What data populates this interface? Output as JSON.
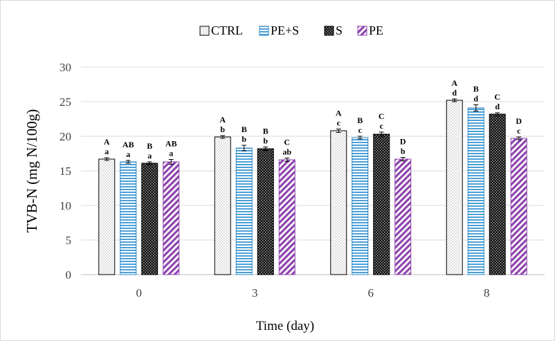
{
  "chart_data": {
    "type": "bar",
    "title": "",
    "xlabel": "Time (day)",
    "ylabel": "TVB-N (mg N/100g)",
    "ylim": [
      0,
      30
    ],
    "yticks": [
      0,
      5,
      10,
      15,
      20,
      25,
      30
    ],
    "categories": [
      "0",
      "3",
      "6",
      "8"
    ],
    "grid": true,
    "legend_position": "top",
    "series": [
      {
        "name": "CTRL",
        "pattern": "dots",
        "color": "#ffffff",
        "values": [
          16.7,
          19.9,
          20.8,
          25.2
        ],
        "errors": [
          0.2,
          0.2,
          0.25,
          0.2
        ],
        "upper_labels": [
          "A",
          "A",
          "A",
          "A"
        ],
        "lower_labels": [
          "a",
          "b",
          "c",
          "d"
        ]
      },
      {
        "name": "PE+S",
        "pattern": "horizontal-stripes",
        "color": "#4a9fd8",
        "values": [
          16.3,
          18.3,
          19.8,
          24.1
        ],
        "errors": [
          0.2,
          0.4,
          0.2,
          0.45
        ],
        "upper_labels": [
          "AB",
          "B",
          "B",
          "B"
        ],
        "lower_labels": [
          "a",
          "b",
          "c",
          "d"
        ]
      },
      {
        "name": "S",
        "pattern": "dark-checker",
        "color": "#1a1a1a",
        "values": [
          16.1,
          18.2,
          20.3,
          23.2
        ],
        "errors": [
          0.2,
          0.25,
          0.3,
          0.2
        ],
        "upper_labels": [
          "B",
          "B",
          "C",
          "C"
        ],
        "lower_labels": [
          "a",
          "b",
          "c",
          "d"
        ]
      },
      {
        "name": "PE",
        "pattern": "diagonal-stripes",
        "color": "#8e44ad",
        "values": [
          16.3,
          16.6,
          16.7,
          19.7
        ],
        "errors": [
          0.35,
          0.25,
          0.25,
          0.2
        ],
        "upper_labels": [
          "AB",
          "C",
          "D",
          "D"
        ],
        "lower_labels": [
          "a",
          "ab",
          "b",
          "c"
        ]
      }
    ]
  }
}
